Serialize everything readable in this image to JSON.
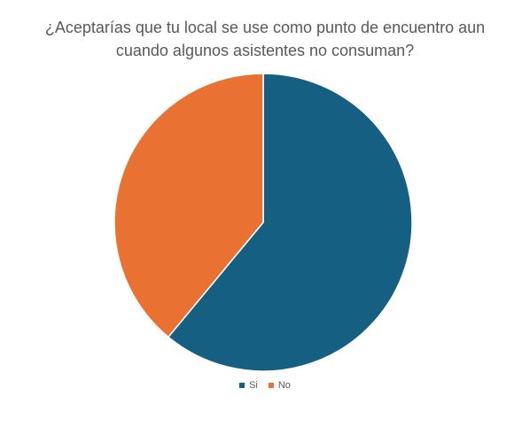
{
  "chart_data": {
    "type": "pie",
    "title_lines": [
      "¿Aceptarías que tu local se use como punto de encuentro aun",
      "cuando algunos asistentes no consuman?"
    ],
    "categories": [
      "Si",
      "No"
    ],
    "values": [
      61,
      39
    ],
    "colors": [
      "#156082",
      "#E97132"
    ],
    "legend_position": "bottom",
    "start_angle_deg": 0,
    "direction": "clockwise"
  }
}
